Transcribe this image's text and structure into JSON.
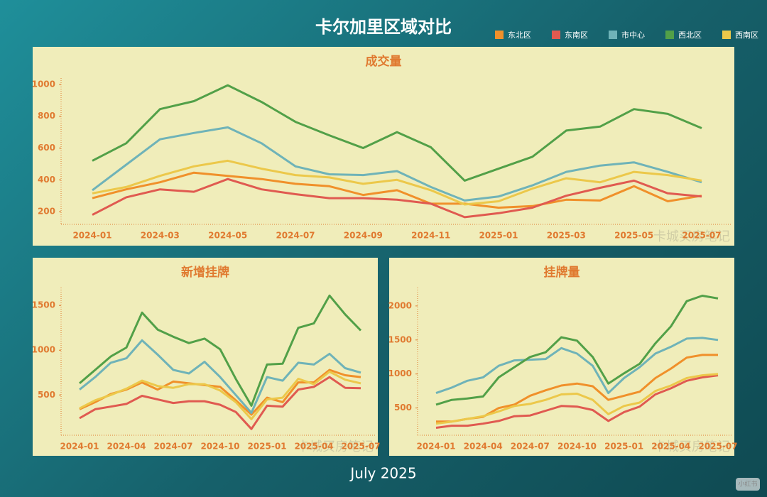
{
  "title": "卡尔加里区域对比",
  "footer": "July 2025",
  "watermark": "卡城买房笔记",
  "badge": "小红书",
  "chart_data": [
    {
      "type": "line",
      "title": "成交量",
      "categories": [
        "2024-01",
        null,
        "2024-03",
        null,
        "2024-05",
        null,
        "2024-07",
        null,
        "2024-09",
        null,
        "2024-11",
        null,
        "2025-01",
        null,
        "2025-03",
        null,
        "2025-05",
        null,
        "2025-07"
      ],
      "ylim": [
        120,
        1040
      ],
      "yticks": [
        200,
        400,
        600,
        800,
        1000
      ],
      "legend": "top-right",
      "series": [
        {
          "name": "东北区",
          "color": "#f0902a",
          "values": [
            285,
            340,
            385,
            445,
            425,
            405,
            375,
            360,
            305,
            335,
            250,
            250,
            225,
            235,
            275,
            270,
            360,
            265,
            300
          ]
        },
        {
          "name": "东南区",
          "color": "#e05a50",
          "values": [
            180,
            290,
            340,
            325,
            405,
            340,
            310,
            285,
            285,
            275,
            250,
            165,
            190,
            225,
            300,
            350,
            395,
            315,
            295
          ]
        },
        {
          "name": "市中心",
          "color": "#6fb3b8",
          "values": [
            335,
            495,
            655,
            695,
            730,
            630,
            485,
            435,
            430,
            455,
            355,
            270,
            295,
            365,
            450,
            490,
            510,
            450,
            385
          ]
        },
        {
          "name": "西北区",
          "color": "#52a048",
          "values": [
            520,
            630,
            845,
            895,
            995,
            890,
            765,
            680,
            600,
            700,
            605,
            395,
            470,
            545,
            710,
            735,
            845,
            815,
            725
          ]
        },
        {
          "name": "西南区",
          "color": "#ecc84a",
          "values": [
            315,
            355,
            425,
            485,
            520,
            470,
            430,
            415,
            375,
            400,
            335,
            245,
            265,
            345,
            410,
            385,
            450,
            430,
            395
          ]
        }
      ]
    },
    {
      "type": "line",
      "title": "新增挂牌",
      "categories": [
        "2024-01",
        null,
        null,
        "2024-04",
        null,
        null,
        "2024-07",
        null,
        null,
        "2024-10",
        null,
        null,
        "2025-01",
        null,
        null,
        "2025-04",
        null,
        null,
        "2025-07"
      ],
      "ylim": [
        50,
        1700
      ],
      "yticks": [
        500,
        1000,
        1500
      ],
      "series": [
        {
          "name": "东北区",
          "color": "#f0902a",
          "values": [
            340,
            420,
            510,
            560,
            640,
            560,
            650,
            630,
            610,
            590,
            440,
            280,
            470,
            420,
            640,
            640,
            780,
            720,
            700
          ]
        },
        {
          "name": "东南区",
          "color": "#e05a50",
          "values": [
            240,
            340,
            370,
            400,
            490,
            450,
            410,
            430,
            430,
            390,
            310,
            120,
            380,
            370,
            560,
            590,
            700,
            580,
            575
          ]
        },
        {
          "name": "市中心",
          "color": "#6fb3b8",
          "values": [
            560,
            700,
            860,
            910,
            1110,
            950,
            780,
            740,
            870,
            700,
            500,
            300,
            700,
            660,
            860,
            840,
            960,
            800,
            750
          ]
        },
        {
          "name": "西北区",
          "color": "#52a048",
          "values": [
            630,
            780,
            930,
            1030,
            1420,
            1230,
            1150,
            1080,
            1130,
            1010,
            680,
            380,
            840,
            850,
            1250,
            1300,
            1610,
            1400,
            1220
          ]
        },
        {
          "name": "西南区",
          "color": "#ecc84a",
          "values": [
            350,
            440,
            500,
            570,
            660,
            600,
            580,
            620,
            620,
            550,
            420,
            230,
            450,
            470,
            680,
            620,
            760,
            670,
            630
          ]
        }
      ]
    },
    {
      "type": "line",
      "title": "挂牌量",
      "categories": [
        "2024-01",
        null,
        null,
        "2024-04",
        null,
        null,
        "2024-07",
        null,
        null,
        "2024-10",
        null,
        null,
        "2025-01",
        null,
        null,
        "2025-04",
        null,
        null,
        "2025-07"
      ],
      "ylim": [
        100,
        2270
      ],
      "yticks": [
        500,
        1000,
        1500,
        2000
      ],
      "series": [
        {
          "name": "东北区",
          "color": "#f0902a",
          "values": [
            300,
            300,
            340,
            370,
            500,
            550,
            680,
            760,
            830,
            860,
            820,
            620,
            680,
            740,
            940,
            1080,
            1240,
            1280,
            1280
          ]
        },
        {
          "name": "东南区",
          "color": "#e05a50",
          "values": [
            210,
            240,
            240,
            270,
            310,
            380,
            390,
            460,
            530,
            520,
            470,
            310,
            440,
            520,
            700,
            790,
            900,
            950,
            980
          ]
        },
        {
          "name": "市中心",
          "color": "#6fb3b8",
          "values": [
            720,
            800,
            900,
            950,
            1120,
            1200,
            1210,
            1220,
            1380,
            1300,
            1120,
            720,
            940,
            1100,
            1300,
            1400,
            1520,
            1530,
            1500
          ]
        },
        {
          "name": "西北区",
          "color": "#52a048",
          "values": [
            550,
            620,
            640,
            670,
            950,
            1100,
            1250,
            1320,
            1540,
            1490,
            1250,
            860,
            1010,
            1150,
            1450,
            1700,
            2070,
            2150,
            2110
          ]
        },
        {
          "name": "西南区",
          "color": "#ecc84a",
          "values": [
            270,
            300,
            340,
            380,
            450,
            530,
            560,
            620,
            700,
            710,
            620,
            410,
            530,
            580,
            750,
            830,
            940,
            980,
            1000
          ]
        }
      ]
    }
  ]
}
